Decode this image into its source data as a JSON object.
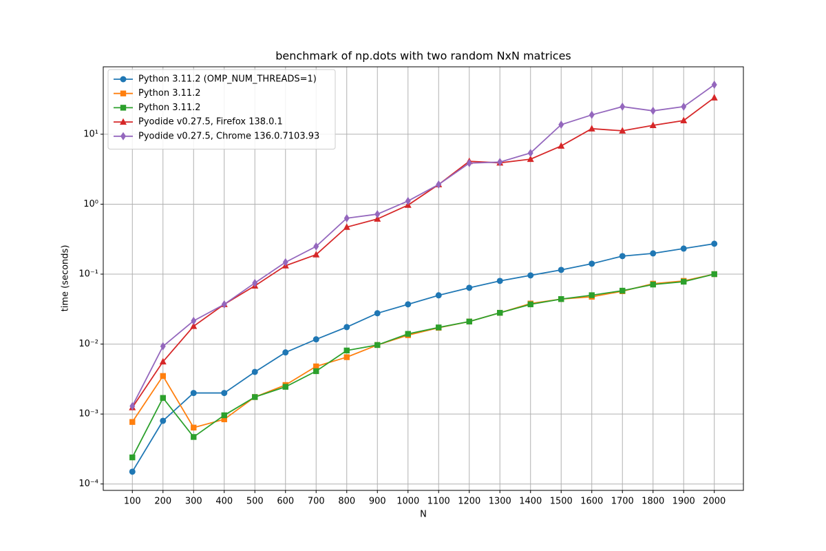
{
  "chart_data": {
    "type": "line",
    "title": "benchmark of np.dots with two random NxN matrices",
    "xlabel": "N",
    "ylabel": "time (seconds)",
    "x": [
      100,
      200,
      300,
      400,
      500,
      600,
      700,
      800,
      900,
      1000,
      1100,
      1200,
      1300,
      1400,
      1500,
      1600,
      1700,
      1800,
      1900,
      2000
    ],
    "xlim": [
      5,
      2095
    ],
    "xticks": [
      100,
      200,
      300,
      400,
      500,
      600,
      700,
      800,
      900,
      1000,
      1100,
      1200,
      1300,
      1400,
      1500,
      1600,
      1700,
      1800,
      1900,
      2000
    ],
    "ylim": [
      8.1e-05,
      92
    ],
    "yscale": "log",
    "yticks": [
      {
        "value": 0.0001,
        "label": "10⁻⁴"
      },
      {
        "value": 0.001,
        "label": "10⁻³"
      },
      {
        "value": 0.01,
        "label": "10⁻²"
      },
      {
        "value": 0.1,
        "label": "10⁻¹"
      },
      {
        "value": 1,
        "label": "10⁰"
      },
      {
        "value": 10,
        "label": "10¹"
      }
    ],
    "grid": true,
    "legend": "upper left",
    "series": [
      {
        "name": "Python 3.11.2 (OMP_NUM_THREADS=1)",
        "color": "#1f77b4",
        "marker": "circle",
        "values": [
          0.00015,
          0.0008,
          0.002,
          0.002,
          0.004,
          0.0076,
          0.0117,
          0.0175,
          0.0276,
          0.037,
          0.0498,
          0.0638,
          0.08,
          0.096,
          0.115,
          0.141,
          0.181,
          0.198,
          0.232,
          0.272
        ]
      },
      {
        "name": "Python 3.11.2",
        "color": "#ff7f0e",
        "marker": "square",
        "values": [
          0.00077,
          0.0035,
          0.00064,
          0.00084,
          0.00175,
          0.0026,
          0.0048,
          0.0065,
          0.0097,
          0.0134,
          0.0171,
          0.021,
          0.028,
          0.038,
          0.044,
          0.0475,
          0.057,
          0.073,
          0.08,
          0.1
        ]
      },
      {
        "name": "Python 3.11.2",
        "color": "#2ca02c",
        "marker": "square",
        "values": [
          0.00024,
          0.0017,
          0.00047,
          0.00096,
          0.00175,
          0.00245,
          0.0041,
          0.0081,
          0.0097,
          0.014,
          0.0173,
          0.021,
          0.028,
          0.037,
          0.044,
          0.05,
          0.058,
          0.071,
          0.078,
          0.1
        ]
      },
      {
        "name": "Pyodide v0.27.5, Firefox 138.0.1",
        "color": "#d62728",
        "marker": "triangle",
        "values": [
          0.00124,
          0.0056,
          0.018,
          0.037,
          0.068,
          0.132,
          0.19,
          0.47,
          0.615,
          0.97,
          1.91,
          4.1,
          3.9,
          4.4,
          6.8,
          12.0,
          11.2,
          13.4,
          15.7,
          33.3
        ]
      },
      {
        "name": "Pyodide v0.27.5, Chrome 136.0.7103.93",
        "color": "#9467bd",
        "marker": "diamond",
        "values": [
          0.0013,
          0.0093,
          0.0215,
          0.037,
          0.0748,
          0.148,
          0.249,
          0.63,
          0.72,
          1.11,
          1.91,
          3.86,
          4.0,
          5.4,
          13.7,
          18.9,
          24.8,
          21.6,
          24.8,
          51
        ]
      }
    ]
  }
}
